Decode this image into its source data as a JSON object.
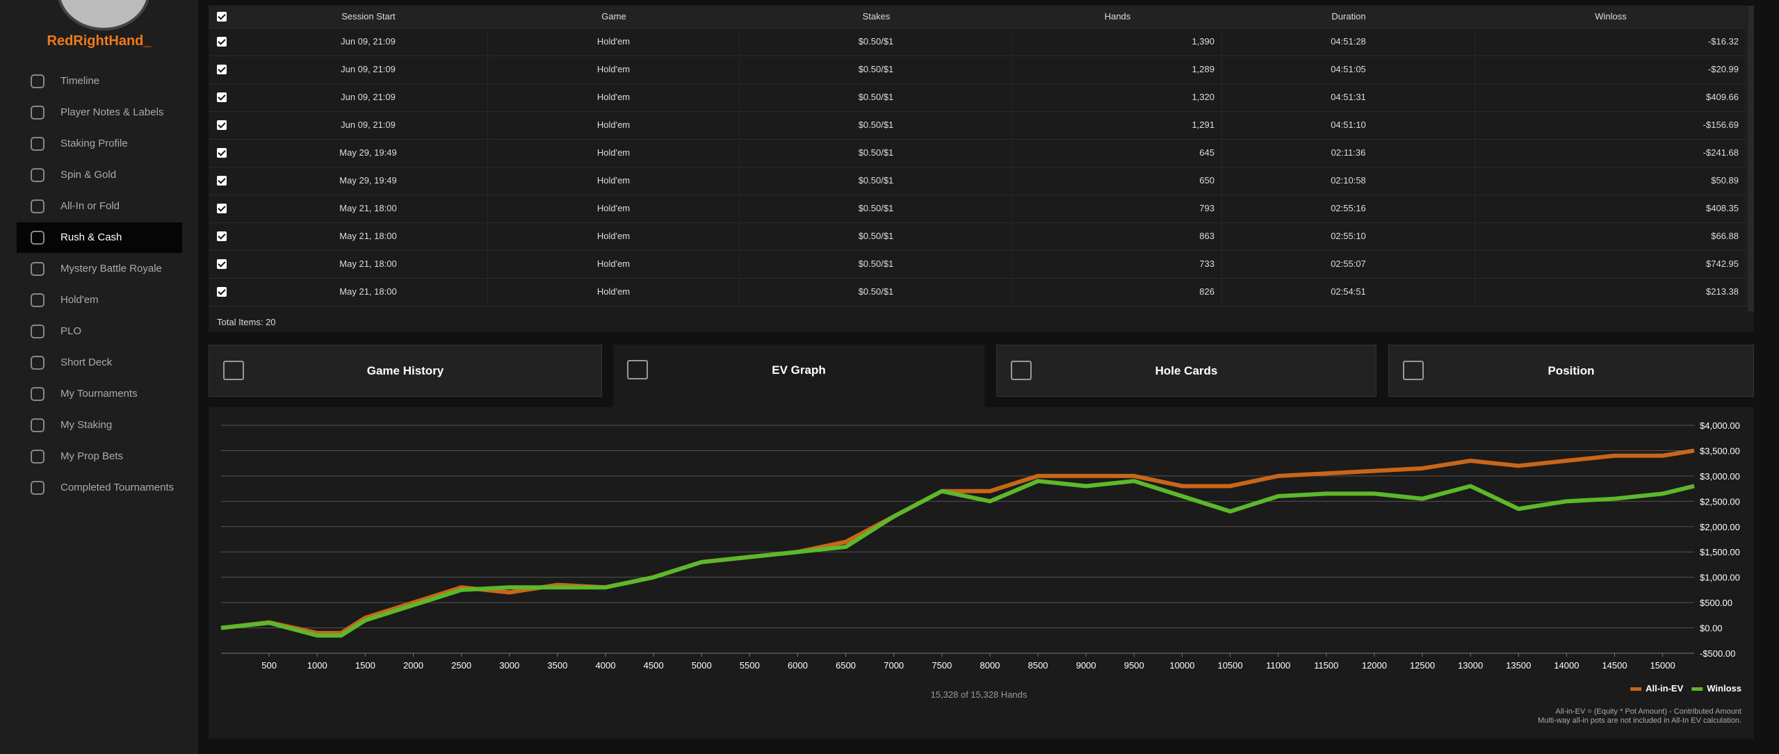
{
  "sidebar": {
    "username": "RedRightHand_",
    "menu": [
      {
        "label": "Timeline"
      },
      {
        "label": "Player Notes & Labels"
      },
      {
        "label": "Staking Profile"
      },
      {
        "label": "Spin & Gold"
      },
      {
        "label": "All-In or Fold"
      },
      {
        "label": "Rush & Cash",
        "selected": true
      },
      {
        "label": "Mystery Battle Royale"
      },
      {
        "label": "Hold'em"
      },
      {
        "label": "PLO"
      },
      {
        "label": "Short Deck"
      },
      {
        "label": "My Tournaments"
      },
      {
        "label": "My Staking"
      },
      {
        "label": "My Prop Bets"
      },
      {
        "label": "Completed Tournaments"
      }
    ]
  },
  "table": {
    "columns": [
      "Session Start",
      "Game",
      "Stakes",
      "Hands",
      "Duration",
      "Winloss"
    ],
    "rows": [
      [
        "Jun 09, 21:09",
        "Hold'em",
        "$0.50/$1",
        "1,390",
        "04:51:28",
        "-$16.32"
      ],
      [
        "Jun 09, 21:09",
        "Hold'em",
        "$0.50/$1",
        "1,289",
        "04:51:05",
        "-$20.99"
      ],
      [
        "Jun 09, 21:09",
        "Hold'em",
        "$0.50/$1",
        "1,320",
        "04:51:31",
        "$409.66"
      ],
      [
        "Jun 09, 21:09",
        "Hold'em",
        "$0.50/$1",
        "1,291",
        "04:51:10",
        "-$156.69"
      ],
      [
        "May 29, 19:49",
        "Hold'em",
        "$0.50/$1",
        "645",
        "02:11:36",
        "-$241.68"
      ],
      [
        "May 29, 19:49",
        "Hold'em",
        "$0.50/$1",
        "650",
        "02:10:58",
        "$50.89"
      ],
      [
        "May 21, 18:00",
        "Hold'em",
        "$0.50/$1",
        "793",
        "02:55:16",
        "$408.35"
      ],
      [
        "May 21, 18:00",
        "Hold'em",
        "$0.50/$1",
        "863",
        "02:55:10",
        "$66.88"
      ],
      [
        "May 21, 18:00",
        "Hold'em",
        "$0.50/$1",
        "733",
        "02:55:07",
        "$742.95"
      ],
      [
        "May 21, 18:00",
        "Hold'em",
        "$0.50/$1",
        "826",
        "02:54:51",
        "$213.38"
      ]
    ],
    "footer": "Total Items: 20"
  },
  "tabs": [
    {
      "label": "Game History"
    },
    {
      "label": "EV Graph",
      "selected": true
    },
    {
      "label": "Hole Cards"
    },
    {
      "label": "Position"
    }
  ],
  "chart_data": {
    "type": "line",
    "x": [
      0,
      500,
      1000,
      1250,
      1500,
      2000,
      2500,
      3000,
      3500,
      4000,
      4500,
      5000,
      5500,
      6000,
      6500,
      7000,
      7500,
      8000,
      8500,
      9000,
      9500,
      10000,
      10500,
      11000,
      11500,
      12000,
      12500,
      13000,
      13500,
      14000,
      14500,
      15000,
      15328
    ],
    "series": [
      {
        "name": "All-in-EV",
        "color": "#c8661a",
        "values": [
          0,
          110,
          -100,
          -100,
          200,
          500,
          800,
          700,
          850,
          800,
          1000,
          1300,
          1400,
          1500,
          1700,
          2200,
          2700,
          2700,
          3000,
          3000,
          3000,
          2800,
          2800,
          3000,
          3050,
          3100,
          3150,
          3300,
          3200,
          3300,
          3400,
          3400,
          3500
        ]
      },
      {
        "name": "Winloss",
        "color": "#5db82a",
        "values": [
          0,
          100,
          -150,
          -150,
          150,
          450,
          750,
          800,
          800,
          800,
          1000,
          1300,
          1400,
          1500,
          1600,
          2200,
          2700,
          2500,
          2900,
          2800,
          2900,
          2600,
          2300,
          2600,
          2650,
          2650,
          2550,
          2800,
          2350,
          2500,
          2550,
          2650,
          2800
        ]
      }
    ],
    "xlim": [
      0,
      15328
    ],
    "ylim": [
      -500,
      4000
    ],
    "xticks": [
      500,
      1000,
      1500,
      2000,
      2500,
      3000,
      3500,
      4000,
      4500,
      5000,
      5500,
      6000,
      6500,
      7000,
      7500,
      8000,
      8500,
      9000,
      9500,
      10000,
      10500,
      11000,
      11500,
      12000,
      12500,
      13000,
      13500,
      14000,
      14500,
      15000
    ],
    "yticks": [
      {
        "value": -500,
        "label": "-$500.00"
      },
      {
        "value": 0,
        "label": "$0.00"
      },
      {
        "value": 500,
        "label": "$500.00"
      },
      {
        "value": 1000,
        "label": "$1,000.00"
      },
      {
        "value": 1500,
        "label": "$1,500.00"
      },
      {
        "value": 2000,
        "label": "$2,000.00"
      },
      {
        "value": 2500,
        "label": "$2,500.00"
      },
      {
        "value": 3000,
        "label": "$3,000.00"
      },
      {
        "value": 3500,
        "label": "$3,500.00"
      },
      {
        "value": 4000,
        "label": "$4,000.00"
      }
    ],
    "grid": true,
    "legend": "bottom-right",
    "caption": "15,328 of 15,328 Hands",
    "notes": [
      "All-in-EV = (Equity * Pot Amount) - Contributed Amount",
      "Multi-way all-in pots are not included in All-In EV calculation."
    ]
  }
}
